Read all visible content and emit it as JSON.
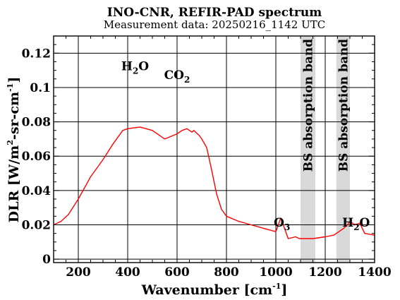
{
  "chart_data": {
    "type": "line",
    "title": "INO-CNR, REFIR-PAD spectrum",
    "subtitle": "Measurement data: 20250216_1142 UTC",
    "xlabel": {
      "base": "Wavenumber [cm",
      "sup": "-1",
      "end": "]"
    },
    "ylabel": {
      "p1": "DLR [W/m",
      "s1": "2",
      "p2": "-sr-cm",
      "s2": "-1",
      "p3": "]"
    },
    "xlim": [
      100,
      1400
    ],
    "ylim": [
      -0.002,
      0.13
    ],
    "xticks": [
      200,
      400,
      600,
      800,
      1000,
      1200,
      1400
    ],
    "yticks": [
      0,
      0.02,
      0.04,
      0.06,
      0.08,
      0.1,
      0.12
    ],
    "xtick_labels": [
      "200",
      "400",
      "600",
      "800",
      "1000",
      "1200",
      "1400"
    ],
    "ytick_labels": [
      "0",
      "0.02",
      "0.04",
      "0.06",
      "0.08",
      "0.1",
      "0.12"
    ],
    "grid": true,
    "series": [
      {
        "color": "#ff0000",
        "x": [
          100,
          130,
          160,
          200,
          250,
          300,
          340,
          380,
          400,
          450,
          500,
          550,
          600,
          620,
          640,
          660,
          668,
          675,
          690,
          700,
          720,
          740,
          760,
          780,
          800,
          850,
          900,
          950,
          1000,
          1020,
          1050,
          1080,
          1095,
          1150,
          1200,
          1235,
          1275,
          1290,
          1300,
          1320,
          1340,
          1360,
          1400
        ],
        "values": [
          0.02,
          0.022,
          0.026,
          0.035,
          0.048,
          0.058,
          0.067,
          0.075,
          0.076,
          0.077,
          0.075,
          0.07,
          0.073,
          0.075,
          0.076,
          0.074,
          0.075,
          0.074,
          0.072,
          0.07,
          0.065,
          0.052,
          0.038,
          0.029,
          0.025,
          0.022,
          0.02,
          0.018,
          0.016,
          0.024,
          0.012,
          0.013,
          0.012,
          0.012,
          0.013,
          0.014,
          0.018,
          0.02,
          0.022,
          0.02,
          0.021,
          0.015,
          0.014
        ]
      }
    ],
    "bands": [
      {
        "label": "BS absorption band",
        "x": [
          1100,
          1160
        ],
        "color": "#d9d9d9"
      },
      {
        "label": "BS absorption band",
        "x": [
          1245,
          1300
        ],
        "color": "#d9d9d9"
      }
    ],
    "annotations": [
      {
        "base": "H",
        "sub": "2",
        "end": "O",
        "x": 430,
        "y": 0.11
      },
      {
        "base": "CO",
        "sub": "2",
        "end": "",
        "x": 600,
        "y": 0.105
      },
      {
        "base": "O",
        "sub": "3",
        "end": "",
        "x": 1025,
        "y": 0.019
      },
      {
        "base": "H",
        "sub": "2",
        "end": "O",
        "x": 1325,
        "y": 0.019
      }
    ]
  }
}
